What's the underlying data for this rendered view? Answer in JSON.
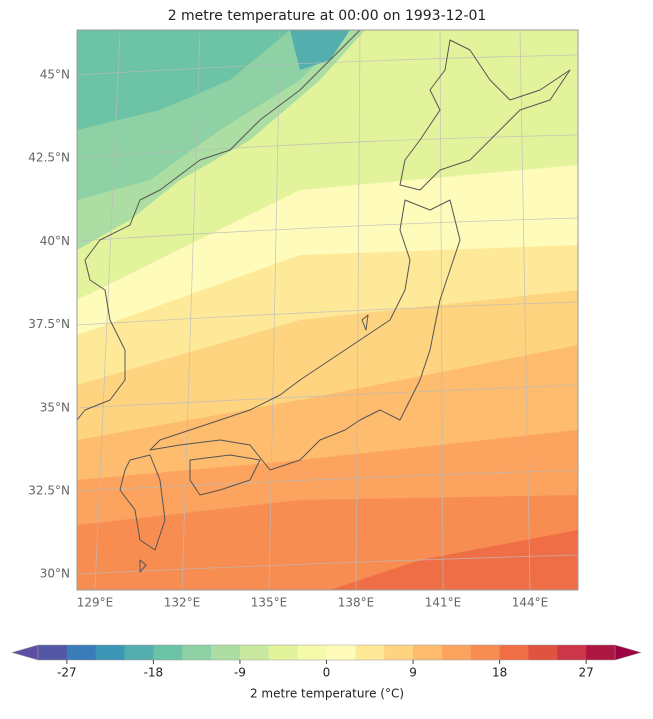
{
  "title": "2 metre temperature at 00:00 on 1993-12-01",
  "map": {
    "lat_labels": [
      "45°N",
      "42.5°N",
      "40°N",
      "37.5°N",
      "35°N",
      "32.5°N",
      "30°N"
    ],
    "lon_labels": [
      "129°E",
      "132°E",
      "135°E",
      "138°E",
      "141°E",
      "144°E"
    ]
  },
  "colorbar": {
    "label": "2 metre temperature (°C)",
    "clim": [
      -30,
      30
    ],
    "ticks": [
      -27,
      -18,
      -9,
      0,
      9,
      18,
      27
    ],
    "colors": [
      "#5357a5",
      "#3a7cb8",
      "#3c96b6",
      "#54aead",
      "#6cc3a6",
      "#8ed1a4",
      "#acdda2",
      "#c8e99f",
      "#e2f39c",
      "#f3faaa",
      "#fffcbb",
      "#fee999",
      "#fed481",
      "#fdbc6e",
      "#fca45f",
      "#f88d52",
      "#f06e45",
      "#e0543f",
      "#cd3548",
      "#ad1640"
    ],
    "under_color": "#5e4fa2",
    "over_color": "#9e0142"
  }
}
